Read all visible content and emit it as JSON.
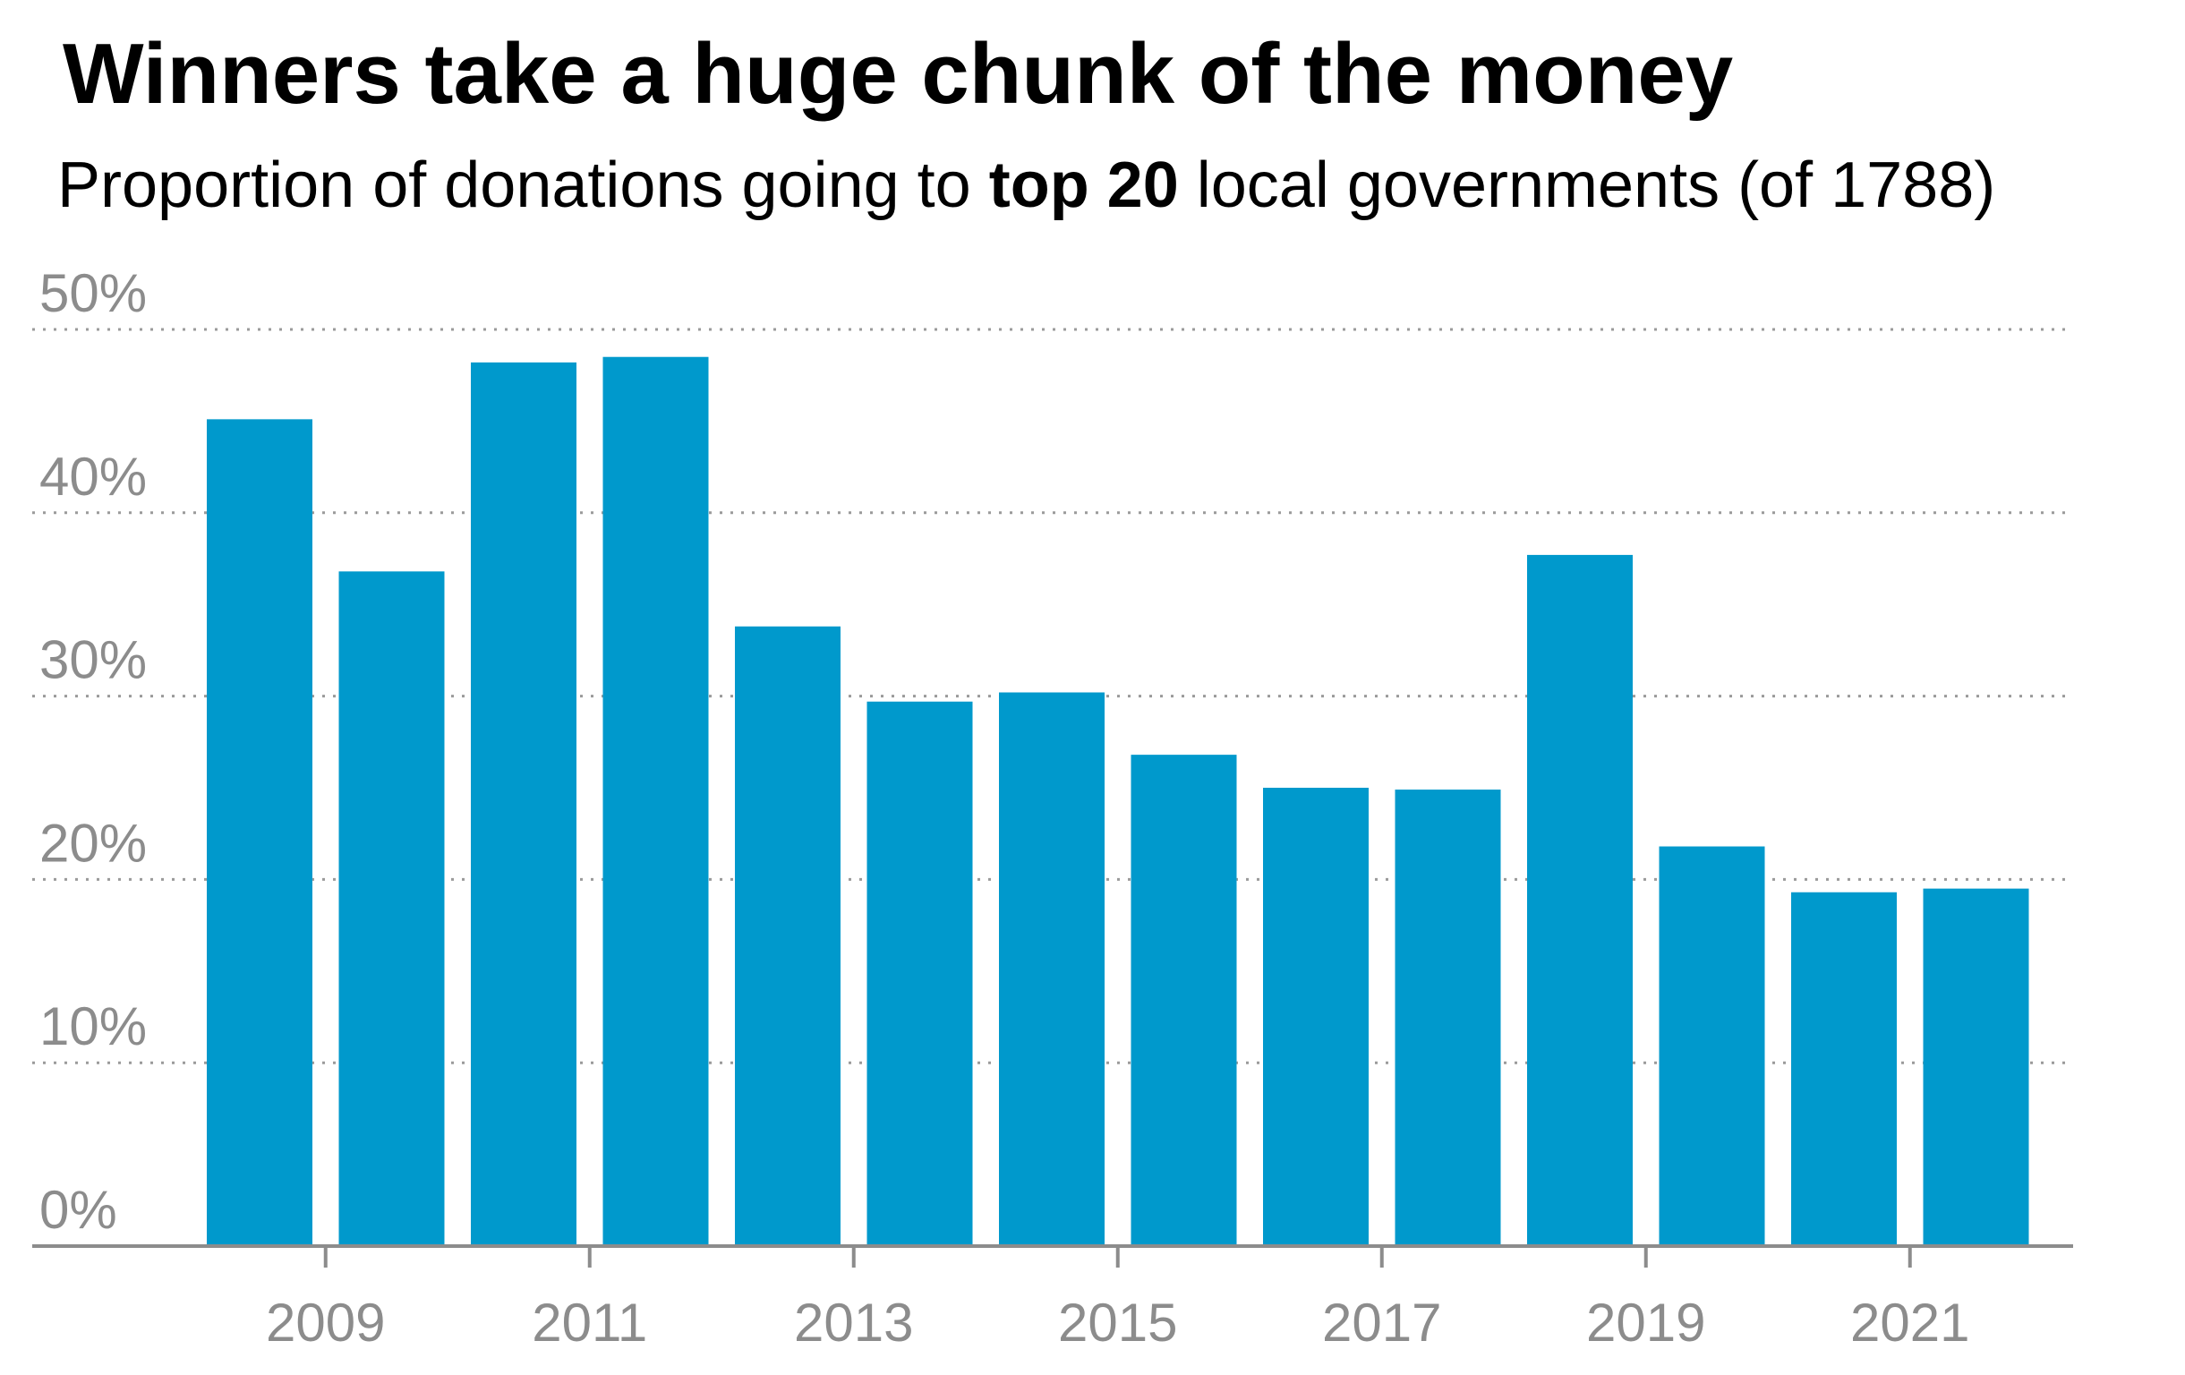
{
  "chart_data": {
    "type": "bar",
    "title": "Winners take a huge chunk of the money",
    "subtitle": {
      "before": "Proportion of donations going to ",
      "bold": "top 20",
      "after": " local governments (of 1788)"
    },
    "x": [
      2008,
      2009,
      2010,
      2011,
      2012,
      2013,
      2014,
      2015,
      2016,
      2017,
      2018,
      2019,
      2020,
      2021
    ],
    "values": [
      45.1,
      36.8,
      48.2,
      48.5,
      33.8,
      29.7,
      30.2,
      26.8,
      25.0,
      24.9,
      37.7,
      21.8,
      19.3,
      19.5
    ],
    "y_ticks": [
      0,
      10,
      20,
      30,
      40,
      50
    ],
    "y_tick_labels": [
      "0%",
      "10%",
      "20%",
      "30%",
      "40%",
      "50%"
    ],
    "x_ticks": [
      2009,
      2011,
      2013,
      2015,
      2017,
      2019,
      2021
    ],
    "x_tick_labels": [
      "2009",
      "2011",
      "2013",
      "2015",
      "2017",
      "2019",
      "2021"
    ],
    "ylim": [
      0,
      50
    ],
    "grid": true,
    "colors": {
      "bar": "#0099cc",
      "grid": "#9a9a9a",
      "axis": "#8c8c8c",
      "tick_text": "#8c8c8c"
    }
  }
}
